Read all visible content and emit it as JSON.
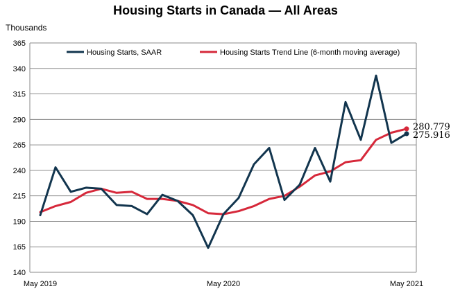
{
  "chart_data": {
    "type": "line",
    "title": "Housing Starts in Canada — All Areas",
    "ylabel": "Thousands",
    "xlabel": "",
    "ylim": [
      140,
      365
    ],
    "yticks": [
      140,
      165,
      190,
      215,
      240,
      265,
      290,
      315,
      340,
      365
    ],
    "x": [
      "2019-05",
      "2019-06",
      "2019-07",
      "2019-08",
      "2019-09",
      "2019-10",
      "2019-11",
      "2019-12",
      "2020-01",
      "2020-02",
      "2020-03",
      "2020-04",
      "2020-05",
      "2020-06",
      "2020-07",
      "2020-08",
      "2020-09",
      "2020-10",
      "2020-11",
      "2020-12",
      "2021-01",
      "2021-02",
      "2021-03",
      "2021-04",
      "2021-05"
    ],
    "xtick_labels": [
      {
        "x": "2019-05",
        "label": "May 2019"
      },
      {
        "x": "2020-05",
        "label": "May 2020"
      },
      {
        "x": "2021-05",
        "label": "May 2021"
      }
    ],
    "grid": true,
    "legend_position": "top",
    "series": [
      {
        "name": "Housing Starts, SAAR",
        "color": "#12354e",
        "values": [
          196,
          243,
          219,
          223,
          222,
          206,
          205,
          197,
          216,
          210,
          196,
          164,
          197,
          213,
          246,
          262,
          211,
          226,
          262,
          229,
          307,
          270,
          333,
          267,
          275.916
        ]
      },
      {
        "name": "Housing Starts Trend Line (6-month moving average)",
        "color": "#d6283a",
        "values": [
          199,
          205,
          209,
          218,
          222,
          218,
          219,
          212,
          212,
          210,
          206,
          198,
          197,
          200,
          205,
          212,
          215,
          224,
          235,
          239,
          248,
          250,
          270,
          277,
          280.779
        ]
      }
    ],
    "annotations": [
      {
        "series": 1,
        "text": "280.779"
      },
      {
        "series": 0,
        "text": "275.916"
      }
    ]
  }
}
